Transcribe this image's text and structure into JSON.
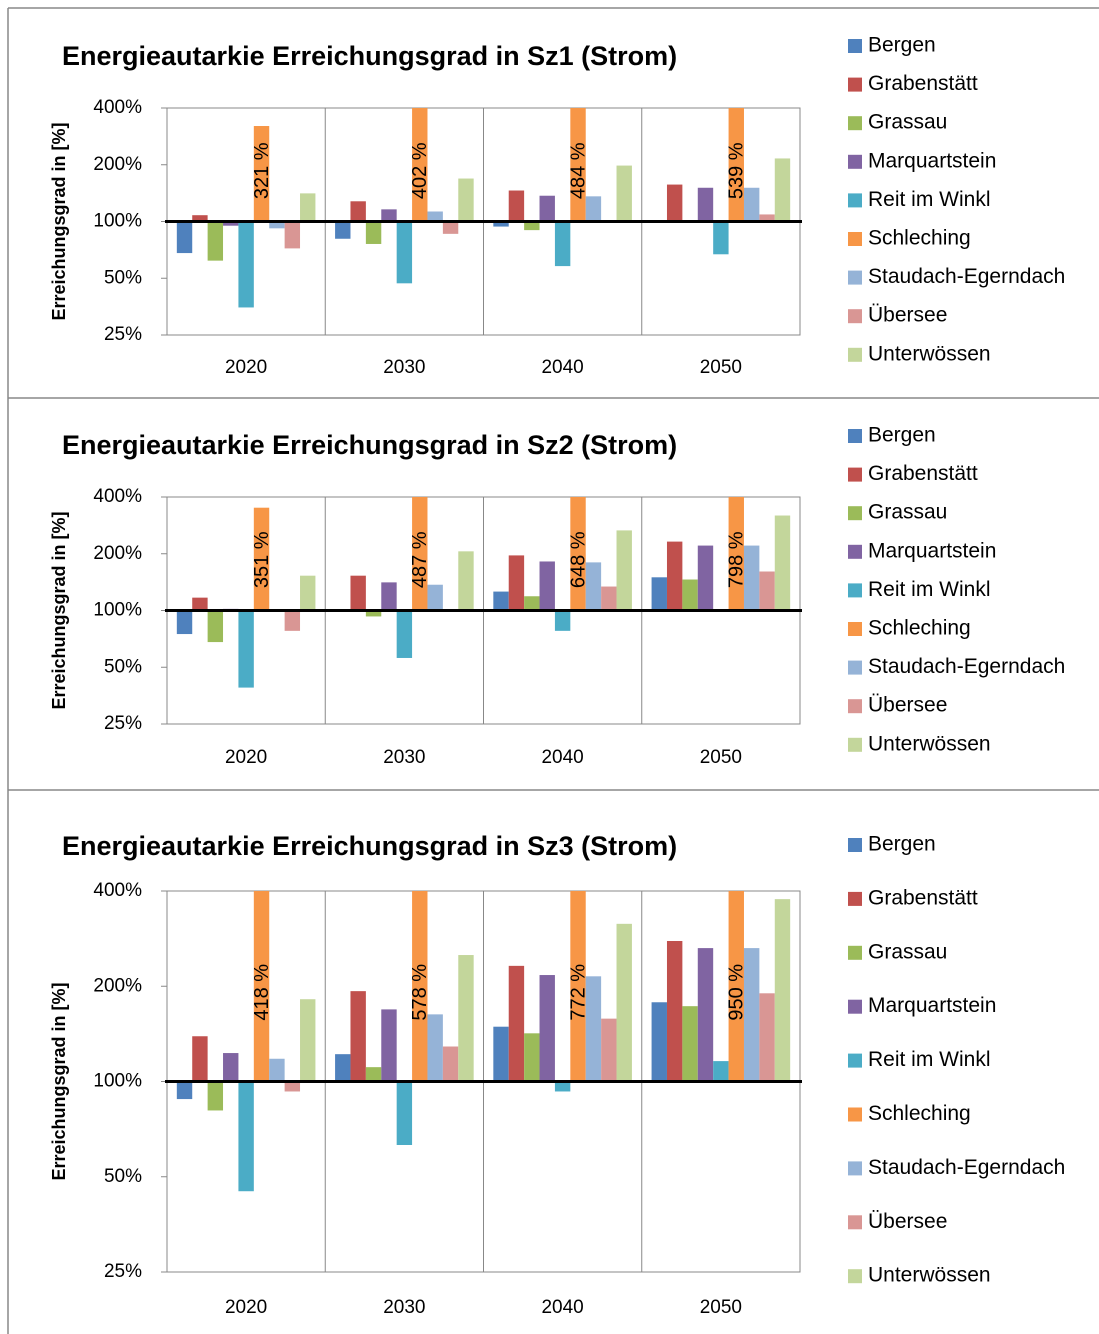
{
  "chart_data": [
    {
      "type": "bar",
      "title": "Energieautarkie Erreichungsgrad in Sz1 (Strom)",
      "y_label": "Erreichungsgrad in [%]",
      "categories": [
        "2020",
        "2030",
        "2040",
        "2050"
      ],
      "log_scale": true,
      "baseline": 100,
      "ylim": [
        25,
        400
      ],
      "yticks": [
        {
          "value": 25,
          "label": "25%"
        },
        {
          "value": 50,
          "label": "50%"
        },
        {
          "value": 100,
          "label": "100%"
        },
        {
          "value": 200,
          "label": "200%"
        },
        {
          "value": 400,
          "label": "400%"
        }
      ],
      "grid": false,
      "legend": "right",
      "series": [
        {
          "name": "Bergen",
          "color": "#4f81bd",
          "values": [
            68,
            81,
            94,
            100
          ]
        },
        {
          "name": "Grabenstätt",
          "color": "#c0504d",
          "values": [
            108,
            128,
            146,
            157
          ]
        },
        {
          "name": "Grassau",
          "color": "#9bbb59",
          "values": [
            62,
            76,
            90,
            100
          ]
        },
        {
          "name": "Marquartstein",
          "color": "#8064a2",
          "values": [
            95,
            116,
            137,
            151
          ]
        },
        {
          "name": "Reit im Winkl",
          "color": "#4bacc6",
          "values": [
            35,
            47,
            58,
            67
          ]
        },
        {
          "name": "Schleching",
          "color": "#f79646",
          "values": [
            321,
            402,
            484,
            539
          ],
          "value_labels": [
            "321 %",
            "402 %",
            "484 %",
            "539 %"
          ]
        },
        {
          "name": "Staudach-Egerndach",
          "color": "#95b3d7",
          "values": [
            92,
            113,
            136,
            151
          ]
        },
        {
          "name": "Übersee",
          "color": "#d99694",
          "values": [
            72,
            86,
            101,
            109
          ]
        },
        {
          "name": "Unterwössen",
          "color": "#c3d69b",
          "values": [
            141,
            169,
            198,
            216
          ]
        }
      ]
    },
    {
      "type": "bar",
      "title": "Energieautarkie Erreichungsgrad in Sz2 (Strom)",
      "y_label": "Erreichungsgrad in [%]",
      "categories": [
        "2020",
        "2030",
        "2040",
        "2050"
      ],
      "log_scale": true,
      "baseline": 100,
      "ylim": [
        25,
        400
      ],
      "yticks": [
        {
          "value": 25,
          "label": "25%"
        },
        {
          "value": 50,
          "label": "50%"
        },
        {
          "value": 100,
          "label": "100%"
        },
        {
          "value": 200,
          "label": "200%"
        },
        {
          "value": 400,
          "label": "400%"
        }
      ],
      "grid": false,
      "legend": "right",
      "series": [
        {
          "name": "Bergen",
          "color": "#4f81bd",
          "values": [
            75,
            100,
            126,
            150
          ]
        },
        {
          "name": "Grabenstätt",
          "color": "#c0504d",
          "values": [
            117,
            153,
            196,
            232
          ]
        },
        {
          "name": "Grassau",
          "color": "#9bbb59",
          "values": [
            68,
            93,
            119,
            146
          ]
        },
        {
          "name": "Marquartstein",
          "color": "#8064a2",
          "values": [
            102,
            141,
            182,
            221
          ]
        },
        {
          "name": "Reit im Winkl",
          "color": "#4bacc6",
          "values": [
            39,
            56,
            78,
            100
          ]
        },
        {
          "name": "Schleching",
          "color": "#f79646",
          "values": [
            351,
            487,
            648,
            798
          ],
          "value_labels": [
            "351 %",
            "487 %",
            "648 %",
            "798 %"
          ]
        },
        {
          "name": "Staudach-Egerndach",
          "color": "#95b3d7",
          "values": [
            100,
            137,
            180,
            221
          ]
        },
        {
          "name": "Übersee",
          "color": "#d99694",
          "values": [
            78,
            100,
            134,
            161
          ]
        },
        {
          "name": "Unterwössen",
          "color": "#c3d69b",
          "values": [
            153,
            206,
            266,
            319
          ]
        }
      ]
    },
    {
      "type": "bar",
      "title": "Energieautarkie Erreichungsgrad in Sz3 (Strom)",
      "y_label": "Erreichungsgrad in [%]",
      "categories": [
        "2020",
        "2030",
        "2040",
        "2050"
      ],
      "log_scale": true,
      "baseline": 100,
      "ylim": [
        25,
        400
      ],
      "yticks": [
        {
          "value": 25,
          "label": "25%"
        },
        {
          "value": 50,
          "label": "50%"
        },
        {
          "value": 100,
          "label": "100%"
        },
        {
          "value": 200,
          "label": "200%"
        },
        {
          "value": 400,
          "label": "400%"
        }
      ],
      "grid": false,
      "legend": "right",
      "series": [
        {
          "name": "Bergen",
          "color": "#4f81bd",
          "values": [
            88,
            122,
            149,
            178
          ]
        },
        {
          "name": "Grabenstätt",
          "color": "#c0504d",
          "values": [
            139,
            193,
            232,
            278
          ]
        },
        {
          "name": "Grassau",
          "color": "#9bbb59",
          "values": [
            81,
            111,
            142,
            173
          ]
        },
        {
          "name": "Marquartstein",
          "color": "#8064a2",
          "values": [
            123,
            169,
            217,
            264
          ]
        },
        {
          "name": "Reit im Winkl",
          "color": "#4bacc6",
          "values": [
            45,
            63,
            93,
            116
          ]
        },
        {
          "name": "Schleching",
          "color": "#f79646",
          "values": [
            418,
            578,
            772,
            950
          ],
          "value_labels": [
            "418 %",
            "578 %",
            "772 %",
            "950 %"
          ]
        },
        {
          "name": "Staudach-Egerndach",
          "color": "#95b3d7",
          "values": [
            118,
            163,
            215,
            264
          ]
        },
        {
          "name": "Übersee",
          "color": "#d99694",
          "values": [
            93,
            129,
            158,
            190
          ]
        },
        {
          "name": "Unterwössen",
          "color": "#c3d69b",
          "values": [
            182,
            251,
            315,
            377
          ]
        }
      ]
    }
  ]
}
